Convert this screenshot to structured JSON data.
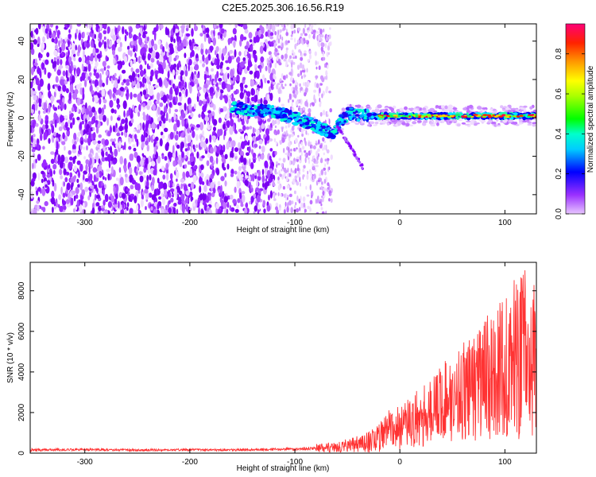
{
  "figure_title": "C2E5.2025.306.16.56.R19",
  "chart_data": [
    {
      "type": "heatmap",
      "title": "C2E5.2025.306.16.56.R19",
      "xlabel": "Height of straight line (km)",
      "ylabel": "Frequency (Hz)",
      "xlim": [
        -352,
        130
      ],
      "ylim": [
        -50,
        49
      ],
      "x_ticks": [
        -300,
        -200,
        -100,
        0,
        100
      ],
      "y_ticks": [
        -40,
        -20,
        0,
        20,
        40
      ],
      "colorbar": {
        "label": "Normalized spectral amplitude",
        "range": [
          0.0,
          0.95
        ],
        "ticks": [
          0.0,
          0.2,
          0.4,
          0.6,
          0.8
        ],
        "colors": [
          "#e6b8ff",
          "#8800ff",
          "#0000ff",
          "#00ffff",
          "#00ff00",
          "#ffff00",
          "#ff8800",
          "#ff0000",
          "#ff0066"
        ]
      },
      "description_features": {
        "noise_region_x": [
          -352,
          -120
        ],
        "sparse_noise_region_x": [
          -120,
          -65
        ],
        "signal_track": [
          {
            "x": -160,
            "y": 5
          },
          {
            "x": -140,
            "y": 4
          },
          {
            "x": -120,
            "y": 3
          },
          {
            "x": -100,
            "y": 0
          },
          {
            "x": -80,
            "y": -4
          },
          {
            "x": -65,
            "y": -8
          },
          {
            "x": -50,
            "y": 2
          },
          {
            "x": -30,
            "y": 1
          },
          {
            "x": 0,
            "y": 1
          },
          {
            "x": 50,
            "y": 1
          },
          {
            "x": 100,
            "y": 1
          },
          {
            "x": 130,
            "y": 1
          }
        ]
      }
    },
    {
      "type": "line",
      "xlabel": "Height of straight line (km)",
      "ylabel": "SNR (10 * v/v)",
      "xlim": [
        -352,
        130
      ],
      "ylim": [
        0,
        9400
      ],
      "x_ticks": [
        -300,
        -200,
        -100,
        0,
        100
      ],
      "y_ticks": [
        0,
        2000,
        4000,
        6000,
        8000
      ],
      "series": [
        {
          "name": "SNR",
          "color": "#ff3333",
          "x": [
            -352,
            -300,
            -250,
            -200,
            -150,
            -100,
            -80,
            -60,
            -40,
            -20,
            -10,
            0,
            20,
            40,
            60,
            80,
            100,
            115,
            130
          ],
          "y": [
            150,
            180,
            150,
            170,
            160,
            200,
            250,
            300,
            450,
            700,
            1400,
            1200,
            1800,
            2500,
            3000,
            3600,
            4200,
            5000,
            4500
          ],
          "amplitude": [
            150,
            120,
            120,
            120,
            120,
            150,
            200,
            250,
            400,
            700,
            900,
            1100,
            1500,
            2000,
            2500,
            3000,
            3500,
            4400,
            3600
          ]
        }
      ]
    }
  ]
}
